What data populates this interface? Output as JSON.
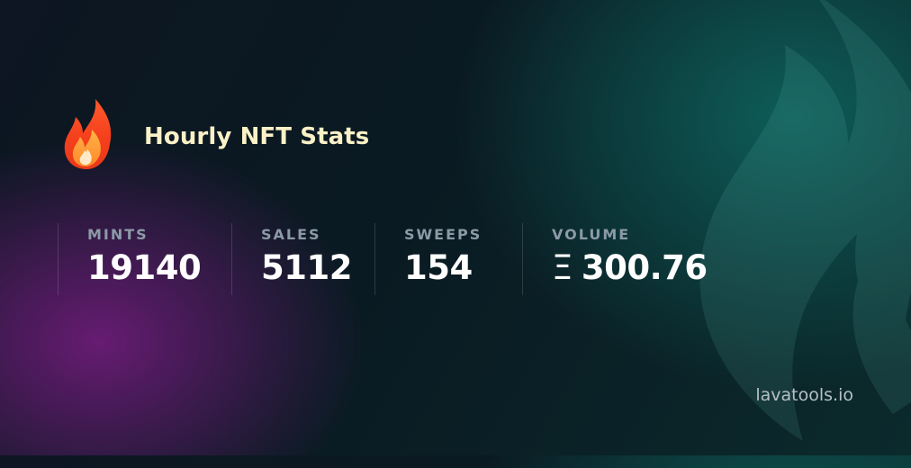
{
  "header": {
    "title": "Hourly NFT Stats",
    "icon": "fire-icon"
  },
  "stats": {
    "mints": {
      "label": "MINTS",
      "value": "19140"
    },
    "sales": {
      "label": "SALES",
      "value": "5112"
    },
    "sweeps": {
      "label": "SWEEPS",
      "value": "154"
    },
    "volume": {
      "label": "VOLUME",
      "currency_symbol": "Ξ",
      "value": "300.76"
    }
  },
  "footer": {
    "brand": "lavatools.io"
  },
  "colors": {
    "title": "#fbf1c7",
    "label": "#8c9aa7",
    "value": "#ffffff",
    "brand": "#b6c0c6",
    "glow_purple": "#761c80",
    "glow_teal": "#0e605a"
  }
}
